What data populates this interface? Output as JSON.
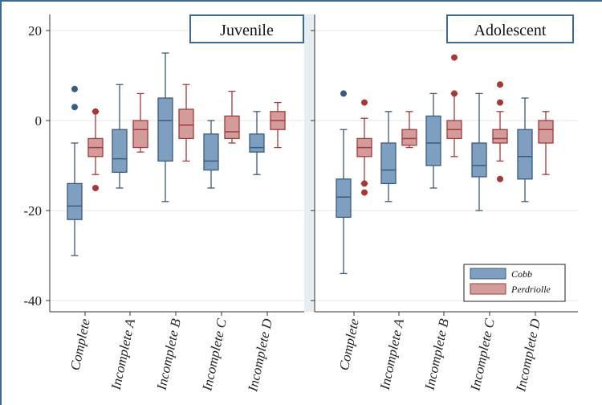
{
  "chart_data": [
    {
      "type": "box",
      "title": "Juvenile",
      "categories": [
        "Complete",
        "Incomplete A",
        "Incomplete B",
        "Incomplete C",
        "Incomplete D"
      ],
      "ylim": [
        -42,
        22
      ],
      "yticks": [
        20,
        0,
        -20,
        -40
      ],
      "ytick_labels": [
        "20",
        "0",
        "-20",
        "-40"
      ],
      "grid": true,
      "series": [
        {
          "name": "Cobb",
          "color": "#7f9fc0",
          "stroke": "#3b5b7c",
          "boxes": [
            {
              "whisker_low": -30,
              "q1": -22,
              "median": -19,
              "q3": -14,
              "whisker_high": -5,
              "outliers": [
                7,
                3
              ]
            },
            {
              "whisker_low": -15,
              "q1": -11.5,
              "median": -8.5,
              "q3": -2,
              "whisker_high": 8,
              "outliers": []
            },
            {
              "whisker_low": -18,
              "q1": -9,
              "median": 0,
              "q3": 5,
              "whisker_high": 15,
              "outliers": []
            },
            {
              "whisker_low": -15,
              "q1": -11,
              "median": -9,
              "q3": -3,
              "whisker_high": 0,
              "outliers": []
            },
            {
              "whisker_low": -12,
              "q1": -7,
              "median": -6,
              "q3": -3,
              "whisker_high": 2,
              "outliers": []
            }
          ]
        },
        {
          "name": "Perdriolle",
          "color": "#d49b9b",
          "stroke": "#a23a3a",
          "boxes": [
            {
              "whisker_low": -12,
              "q1": -8,
              "median": -6,
              "q3": -4,
              "whisker_high": 2,
              "outliers": [
                -15,
                2
              ]
            },
            {
              "whisker_low": -7,
              "q1": -6,
              "median": -2,
              "q3": 0,
              "whisker_high": 6,
              "outliers": []
            },
            {
              "whisker_low": -9,
              "q1": -4,
              "median": -1,
              "q3": 2.5,
              "whisker_high": 8,
              "outliers": []
            },
            {
              "whisker_low": -5,
              "q1": -4,
              "median": -2.5,
              "q3": 1,
              "whisker_high": 6.5,
              "outliers": []
            },
            {
              "whisker_low": -6,
              "q1": -2,
              "median": 0,
              "q3": 2,
              "whisker_high": 4,
              "outliers": []
            }
          ]
        }
      ]
    },
    {
      "type": "box",
      "title": "Adolescent",
      "categories": [
        "Complete",
        "Incomplete A",
        "Incomplete B",
        "Incomplete C",
        "Incomplete D"
      ],
      "ylim": [
        -42,
        22
      ],
      "grid": true,
      "legend_position": "bottom-right",
      "series": [
        {
          "name": "Cobb",
          "color": "#7f9fc0",
          "stroke": "#3b5b7c",
          "boxes": [
            {
              "whisker_low": -34,
              "q1": -21.5,
              "median": -17,
              "q3": -13,
              "whisker_high": -2,
              "outliers": [
                6
              ]
            },
            {
              "whisker_low": -18,
              "q1": -14,
              "median": -11,
              "q3": -5,
              "whisker_high": 2,
              "outliers": []
            },
            {
              "whisker_low": -15,
              "q1": -10,
              "median": -5,
              "q3": 1,
              "whisker_high": 6,
              "outliers": []
            },
            {
              "whisker_low": -20,
              "q1": -12.5,
              "median": -10,
              "q3": -5,
              "whisker_high": 6,
              "outliers": []
            },
            {
              "whisker_low": -18,
              "q1": -13,
              "median": -8,
              "q3": -2,
              "whisker_high": 5,
              "outliers": []
            }
          ]
        },
        {
          "name": "Perdriolle",
          "color": "#d49b9b",
          "stroke": "#a23a3a",
          "boxes": [
            {
              "whisker_low": -14,
              "q1": -8,
              "median": -6,
              "q3": -4,
              "whisker_high": 0.5,
              "outliers": [
                4,
                -14,
                -16
              ]
            },
            {
              "whisker_low": -6,
              "q1": -5.5,
              "median": -4,
              "q3": -2,
              "whisker_high": 2,
              "outliers": []
            },
            {
              "whisker_low": -8,
              "q1": -4,
              "median": -2,
              "q3": 0,
              "whisker_high": 6,
              "outliers": [
                14,
                6
              ]
            },
            {
              "whisker_low": -9,
              "q1": -5,
              "median": -4,
              "q3": -2,
              "whisker_high": 2,
              "outliers": [
                8,
                4,
                -13
              ]
            },
            {
              "whisker_low": -12,
              "q1": -5,
              "median": -2,
              "q3": 0,
              "whisker_high": 2,
              "outliers": []
            }
          ]
        }
      ]
    }
  ],
  "legend": {
    "items": [
      "Cobb",
      "Perdriolle"
    ]
  }
}
